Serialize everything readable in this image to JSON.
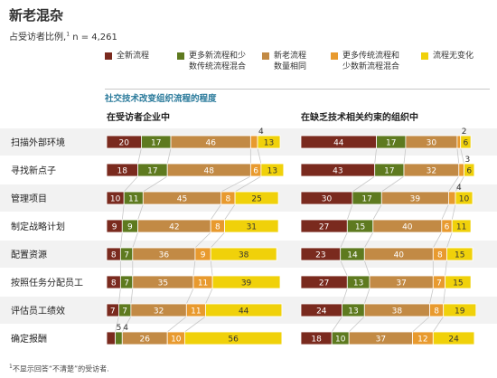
{
  "title": "新老混杂",
  "subtitle": "占受访者比例,",
  "subtitle_sup": "1",
  "subtitle_n": " n = 4,261",
  "legend": [
    {
      "line1": "全新流程",
      "line2": "",
      "color": "#7a2a1e"
    },
    {
      "line1": "更多新流程和少",
      "line2": "数传统流程混合",
      "color": "#5e7a1f"
    },
    {
      "line1": "新老流程",
      "line2": "数量相同",
      "color": "#c28a45"
    },
    {
      "line1": "更多传统流程和",
      "line2": "少数新流程混合",
      "color": "#e89a2e"
    },
    {
      "line1": "流程无变化",
      "line2": "",
      "color": "#f0d10a"
    }
  ],
  "section_title": "社交技术改变组织流程的程度",
  "footnote_sup": "1",
  "footnote": "不显示回答“不清楚”的受访者.",
  "chart_data": {
    "type": "bar",
    "stacked": true,
    "orientation": "horizontal",
    "scale": "percent",
    "categories": [
      "扫描外部环境",
      "寻找新点子",
      "管理项目",
      "制定战略计划",
      "配置资源",
      "按照任务分配员工",
      "评估员工绩效",
      "确定报酬"
    ],
    "panels": [
      {
        "title": "在受访者企业中",
        "series": [
          {
            "name": "全新流程",
            "values": [
              20,
              18,
              10,
              9,
              8,
              8,
              7,
              5
            ]
          },
          {
            "name": "更多新流程和少数传统流程混合",
            "values": [
              17,
              17,
              11,
              9,
              7,
              7,
              7,
              4
            ]
          },
          {
            "name": "新老流程数量相同",
            "values": [
              46,
              48,
              45,
              42,
              36,
              35,
              32,
              26
            ]
          },
          {
            "name": "更多传统流程和少数新流程混合",
            "values": [
              4,
              6,
              8,
              8,
              9,
              11,
              11,
              10
            ]
          },
          {
            "name": "流程无变化",
            "values": [
              13,
              13,
              25,
              31,
              38,
              39,
              44,
              56
            ]
          }
        ]
      },
      {
        "title": "在缺乏技术相关约束的组织中",
        "series": [
          {
            "name": "全新流程",
            "values": [
              44,
              43,
              30,
              27,
              23,
              27,
              24,
              18
            ]
          },
          {
            "name": "更多新流程和少数传统流程混合",
            "values": [
              17,
              17,
              17,
              15,
              14,
              13,
              13,
              10
            ]
          },
          {
            "name": "新老流程数量相同",
            "values": [
              30,
              32,
              39,
              40,
              40,
              37,
              38,
              37
            ]
          },
          {
            "name": "更多传统流程和少数新流程混合",
            "values": [
              2,
              3,
              4,
              6,
              8,
              7,
              8,
              12
            ]
          },
          {
            "name": "流程无变化",
            "values": [
              6,
              6,
              10,
              11,
              15,
              15,
              19,
              24
            ]
          }
        ]
      }
    ]
  }
}
